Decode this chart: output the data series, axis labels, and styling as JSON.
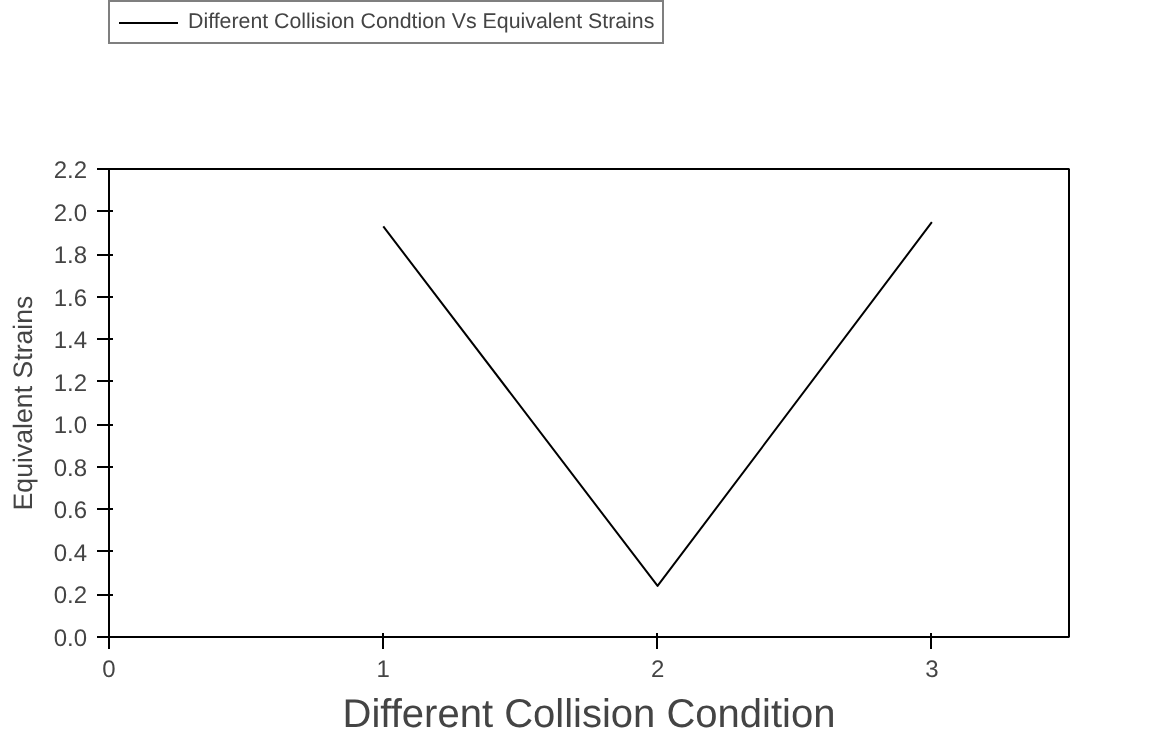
{
  "chart_data": {
    "type": "line",
    "xlabel": "Different Collision Condition",
    "ylabel": "Equivalent Strains",
    "x": [
      1,
      2,
      3
    ],
    "series": [
      {
        "name": "Different Collision Condtion Vs Equivalent Strains",
        "color": "#000000",
        "values": [
          1.93,
          0.24,
          1.95
        ]
      }
    ],
    "xlim": [
      0,
      3.5
    ],
    "xticks": [
      0,
      1,
      2,
      3
    ],
    "ylim": [
      0,
      2.2
    ],
    "yticks": [
      {
        "value": 0,
        "label": "0.0"
      },
      {
        "value": 0.2,
        "label": "0.2"
      },
      {
        "value": 0.4,
        "label": "0.4"
      },
      {
        "value": 0.6,
        "label": "0.6"
      },
      {
        "value": 0.8,
        "label": "0.8"
      },
      {
        "value": 1.0,
        "label": "1.0"
      },
      {
        "value": 1.2,
        "label": "1.2"
      },
      {
        "value": 1.4,
        "label": "1.4"
      },
      {
        "value": 1.6,
        "label": "1.6"
      },
      {
        "value": 1.8,
        "label": "1.8"
      },
      {
        "value": 2.0,
        "label": "2.0"
      },
      {
        "value": 2.2,
        "label": "2.2"
      }
    ],
    "grid": false,
    "legend": "top left",
    "marker": "none",
    "line_style": "solid"
  }
}
